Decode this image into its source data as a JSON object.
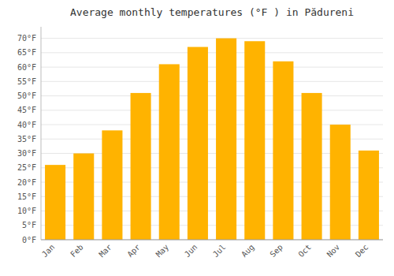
{
  "chart_data": {
    "type": "bar",
    "title": "Average monthly temperatures (°F ) in Pădureni",
    "categories": [
      "Jan",
      "Feb",
      "Mar",
      "Apr",
      "May",
      "Jun",
      "Jul",
      "Aug",
      "Sep",
      "Oct",
      "Nov",
      "Dec"
    ],
    "values": [
      26,
      30,
      38,
      51,
      61,
      67,
      70,
      69,
      62,
      51,
      40,
      31
    ],
    "color": "#FFB300",
    "ylim": [
      0,
      74
    ],
    "yticks": [
      {
        "value": 0,
        "label": "0°F"
      },
      {
        "value": 5,
        "label": "5°F"
      },
      {
        "value": 10,
        "label": "10°F"
      },
      {
        "value": 15,
        "label": "15°F"
      },
      {
        "value": 20,
        "label": "20°F"
      },
      {
        "value": 25,
        "label": "25°F"
      },
      {
        "value": 30,
        "label": "30°F"
      },
      {
        "value": 35,
        "label": "35°F"
      },
      {
        "value": 40,
        "label": "40°F"
      },
      {
        "value": 45,
        "label": "45°F"
      },
      {
        "value": 50,
        "label": "50°F"
      },
      {
        "value": 55,
        "label": "55°F"
      },
      {
        "value": 60,
        "label": "60°F"
      },
      {
        "value": 65,
        "label": "65°F"
      },
      {
        "value": 70,
        "label": "70°F"
      }
    ],
    "grid": true
  }
}
